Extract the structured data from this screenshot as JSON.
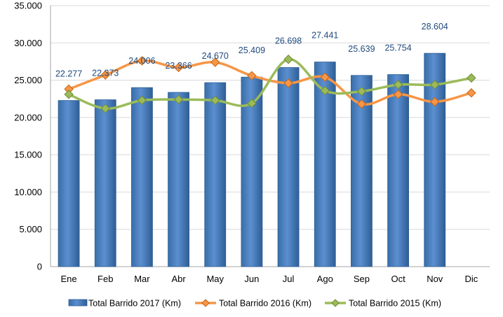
{
  "chart_data": {
    "type": "bar",
    "categories": [
      "Ene",
      "Feb",
      "Mar",
      "Abr",
      "May",
      "Jun",
      "Jul",
      "Ago",
      "Sep",
      "Oct",
      "Nov",
      "Dic"
    ],
    "ylim": [
      0,
      35000
    ],
    "y_ticks": [
      "0",
      "5.000",
      "10.000",
      "15.000",
      "20.000",
      "25.000",
      "30.000",
      "35.000"
    ],
    "grid": true,
    "legend_position": "bottom",
    "series": [
      {
        "name": "Total Barrido 2017 (Km)",
        "type": "bar",
        "color": "#4f81bd",
        "values": [
          22277,
          22373,
          24006,
          23366,
          24670,
          25409,
          26698,
          27441,
          25639,
          25754,
          28604,
          null
        ],
        "data_labels": [
          "22.277",
          "22.373",
          "24.006",
          "23.366",
          "24.670",
          "25.409",
          "26.698",
          "27.441",
          "25.639",
          "25.754",
          "28.604",
          ""
        ]
      },
      {
        "name": "Total Barrido 2016 (Km)",
        "type": "line",
        "color": "#f79646",
        "values": [
          23800,
          25700,
          27600,
          26700,
          27400,
          25600,
          24600,
          25400,
          21800,
          23100,
          22100,
          23300
        ]
      },
      {
        "name": "Total Barrido 2015 (Km)",
        "type": "line",
        "color": "#9bbb59",
        "values": [
          23100,
          21200,
          22300,
          22400,
          22300,
          21900,
          27800,
          23600,
          23500,
          24400,
          24400,
          25300
        ]
      }
    ]
  }
}
